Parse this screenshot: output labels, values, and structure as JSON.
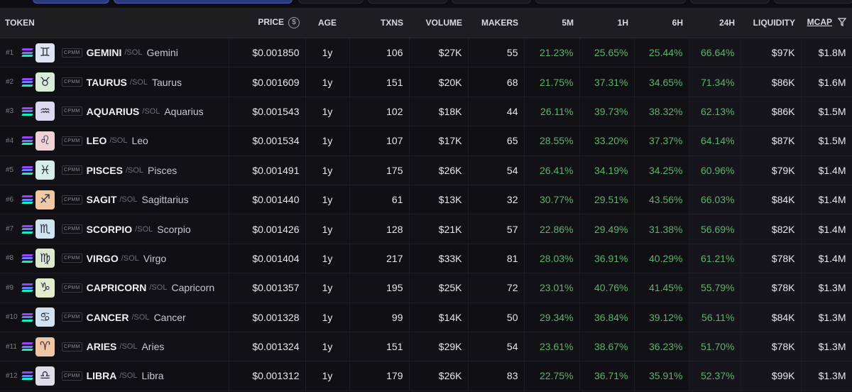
{
  "header": {
    "token": "TOKEN",
    "price": "PRICE",
    "age": "AGE",
    "txns": "TXNS",
    "volume": "VOLUME",
    "makers": "MAKERS",
    "m5": "5M",
    "h1": "1H",
    "h6": "6H",
    "h24": "24H",
    "liquidity": "LIQUIDITY",
    "mcap": "MCAP"
  },
  "colors": {
    "positive": "#5fb36d",
    "accent": "#2c3a78"
  },
  "rows": [
    {
      "rank": "#1",
      "icon": "gemini-icon",
      "glyph": "♊",
      "bg": "#dfe3f3",
      "badge": "CPMM",
      "symbol": "GEMINI",
      "pair": "/SOL",
      "name": "Gemini",
      "price": "$0.001850",
      "age": "1y",
      "txns": "106",
      "volume": "$27K",
      "makers": "55",
      "m5": "21.23%",
      "h1": "25.65%",
      "h6": "25.44%",
      "h24": "66.64%",
      "liquidity": "$97K",
      "mcap": "$1.8M"
    },
    {
      "rank": "#2",
      "icon": "taurus-icon",
      "glyph": "♉",
      "bg": "#d9ecd7",
      "badge": "CPMM",
      "symbol": "TAURUS",
      "pair": "/SOL",
      "name": "Taurus",
      "price": "$0.001609",
      "age": "1y",
      "txns": "151",
      "volume": "$20K",
      "makers": "68",
      "m5": "21.75%",
      "h1": "37.31%",
      "h6": "34.65%",
      "h24": "71.34%",
      "liquidity": "$86K",
      "mcap": "$1.6M"
    },
    {
      "rank": "#3",
      "icon": "aquarius-icon",
      "glyph": "♒",
      "bg": "#dcd8ef",
      "badge": "CPMM",
      "symbol": "AQUARIUS",
      "pair": "/SOL",
      "name": "Aquarius",
      "price": "$0.001543",
      "age": "1y",
      "txns": "102",
      "volume": "$18K",
      "makers": "44",
      "m5": "26.11%",
      "h1": "39.73%",
      "h6": "38.32%",
      "h24": "62.13%",
      "liquidity": "$86K",
      "mcap": "$1.5M"
    },
    {
      "rank": "#4",
      "icon": "leo-icon",
      "glyph": "♌",
      "bg": "#efd3d4",
      "badge": "CPMM",
      "symbol": "LEO",
      "pair": "/SOL",
      "name": "Leo",
      "price": "$0.001534",
      "age": "1y",
      "txns": "107",
      "volume": "$17K",
      "makers": "65",
      "m5": "28.55%",
      "h1": "33.20%",
      "h6": "37.37%",
      "h24": "64.14%",
      "liquidity": "$87K",
      "mcap": "$1.5M"
    },
    {
      "rank": "#5",
      "icon": "pisces-icon",
      "glyph": "♓",
      "bg": "#d6eee7",
      "badge": "CPMM",
      "symbol": "PISCES",
      "pair": "/SOL",
      "name": "Pisces",
      "price": "$0.001491",
      "age": "1y",
      "txns": "175",
      "volume": "$26K",
      "makers": "54",
      "m5": "26.41%",
      "h1": "34.19%",
      "h6": "34.25%",
      "h24": "60.96%",
      "liquidity": "$79K",
      "mcap": "$1.4M"
    },
    {
      "rank": "#6",
      "icon": "sagittarius-icon",
      "glyph": "♐",
      "bg": "#efc9a6",
      "badge": "CPMM",
      "symbol": "SAGIT",
      "pair": "/SOL",
      "name": "Sagittarius",
      "price": "$0.001440",
      "age": "1y",
      "txns": "61",
      "volume": "$13K",
      "makers": "32",
      "m5": "30.77%",
      "h1": "29.51%",
      "h6": "43.56%",
      "h24": "66.03%",
      "liquidity": "$84K",
      "mcap": "$1.4M"
    },
    {
      "rank": "#7",
      "icon": "scorpio-icon",
      "glyph": "♏",
      "bg": "#cfe4ee",
      "badge": "CPMM",
      "symbol": "SCORPIO",
      "pair": "/SOL",
      "name": "Scorpio",
      "price": "$0.001426",
      "age": "1y",
      "txns": "128",
      "volume": "$21K",
      "makers": "57",
      "m5": "22.86%",
      "h1": "29.49%",
      "h6": "31.38%",
      "h24": "56.69%",
      "liquidity": "$82K",
      "mcap": "$1.4M"
    },
    {
      "rank": "#8",
      "icon": "virgo-icon",
      "glyph": "♍",
      "bg": "#dcebcf",
      "badge": "CPMM",
      "symbol": "VIRGO",
      "pair": "/SOL",
      "name": "Virgo",
      "price": "$0.001404",
      "age": "1y",
      "txns": "217",
      "volume": "$33K",
      "makers": "81",
      "m5": "28.03%",
      "h1": "36.91%",
      "h6": "40.29%",
      "h24": "61.21%",
      "liquidity": "$78K",
      "mcap": "$1.4M"
    },
    {
      "rank": "#9",
      "icon": "capricorn-icon",
      "glyph": "♑",
      "bg": "#e3eccf",
      "badge": "CPMM",
      "symbol": "CAPRICORN",
      "pair": "/SOL",
      "name": "Capricorn",
      "price": "$0.001357",
      "age": "1y",
      "txns": "195",
      "volume": "$25K",
      "makers": "72",
      "m5": "23.01%",
      "h1": "40.76%",
      "h6": "41.45%",
      "h24": "55.79%",
      "liquidity": "$78K",
      "mcap": "$1.3M"
    },
    {
      "rank": "#10",
      "icon": "cancer-icon",
      "glyph": "♋",
      "bg": "#d2e2f1",
      "badge": "CPMM",
      "symbol": "CANCER",
      "pair": "/SOL",
      "name": "Cancer",
      "price": "$0.001328",
      "age": "1y",
      "txns": "99",
      "volume": "$14K",
      "makers": "50",
      "m5": "29.34%",
      "h1": "36.84%",
      "h6": "39.12%",
      "h24": "56.11%",
      "liquidity": "$84K",
      "mcap": "$1.3M"
    },
    {
      "rank": "#11",
      "icon": "aries-icon",
      "glyph": "♈",
      "bg": "#efc6a8",
      "badge": "CPMM",
      "symbol": "ARIES",
      "pair": "/SOL",
      "name": "Aries",
      "price": "$0.001324",
      "age": "1y",
      "txns": "151",
      "volume": "$29K",
      "makers": "54",
      "m5": "23.61%",
      "h1": "38.67%",
      "h6": "36.23%",
      "h24": "51.70%",
      "liquidity": "$78K",
      "mcap": "$1.3M"
    },
    {
      "rank": "#12",
      "icon": "libra-icon",
      "glyph": "♎",
      "bg": "#dedde9",
      "badge": "CPMM",
      "symbol": "LIBRA",
      "pair": "/SOL",
      "name": "Libra",
      "price": "$0.001312",
      "age": "1y",
      "txns": "179",
      "volume": "$26K",
      "makers": "83",
      "m5": "22.75%",
      "h1": "36.71%",
      "h6": "35.91%",
      "h24": "52.37%",
      "liquidity": "$99K",
      "mcap": "$1.3M"
    }
  ]
}
